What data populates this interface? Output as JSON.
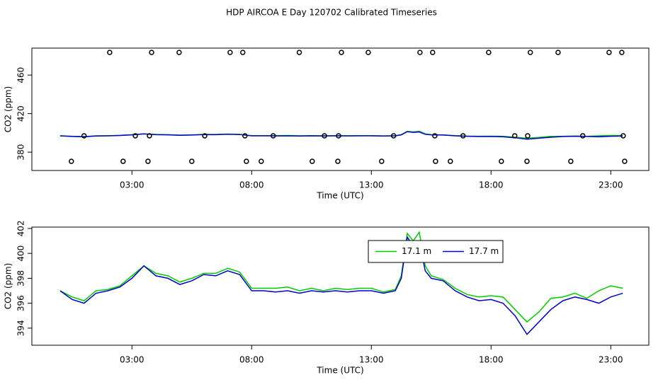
{
  "title": "HDP AIRCOA E  Day 120702  Calibrated Timeseries",
  "chart_data": [
    {
      "type": "line",
      "xlabel": "Time (UTC)",
      "ylabel": "CO2 (ppm)",
      "xlim": [
        -1.18,
        24.59
      ],
      "ylim": [
        361,
        488
      ],
      "xticks": [
        {
          "value": 3,
          "label": "03:00"
        },
        {
          "value": 8,
          "label": "08:00"
        },
        {
          "value": 13,
          "label": "13:00"
        },
        {
          "value": 18,
          "label": "18:00"
        },
        {
          "value": 23,
          "label": "23:00"
        }
      ],
      "yticks": [
        380,
        420,
        460
      ],
      "x": [
        0,
        0.5,
        1,
        1.5,
        2,
        2.5,
        3,
        3.5,
        4,
        4.5,
        5,
        5.5,
        6,
        6.5,
        7,
        7.5,
        8,
        8.5,
        9,
        9.5,
        10,
        10.5,
        11,
        11.5,
        12,
        12.5,
        13,
        13.5,
        14,
        14.25,
        14.5,
        14.75,
        15,
        15.25,
        15.5,
        16,
        16.5,
        17,
        17.5,
        18,
        18.5,
        19,
        19.5,
        20,
        20.5,
        21,
        21.5,
        22,
        22.5,
        23,
        23.5
      ],
      "series": [
        {
          "color": "#00cc00",
          "values": [
            397.0,
            396.5,
            396.2,
            397.0,
            397.1,
            397.4,
            398.2,
            399.0,
            398.4,
            398.2,
            397.7,
            398.0,
            398.4,
            398.4,
            398.8,
            398.5,
            397.2,
            397.2,
            397.2,
            397.3,
            397.0,
            397.2,
            397.0,
            397.2,
            397.1,
            397.2,
            397.2,
            396.9,
            397.1,
            398.2,
            401.6,
            401.0,
            401.7,
            399.0,
            398.2,
            397.9,
            397.2,
            396.7,
            396.5,
            396.6,
            396.5,
            395.5,
            394.5,
            395.3,
            396.4,
            396.5,
            396.8,
            396.4,
            397.0,
            397.4,
            397.2
          ]
        },
        {
          "color": "#0000cc",
          "values": [
            397.0,
            396.3,
            396.0,
            396.8,
            397.0,
            397.3,
            398.0,
            399.0,
            398.2,
            398.0,
            397.5,
            397.8,
            398.3,
            398.2,
            398.6,
            398.3,
            397.0,
            397.0,
            396.9,
            397.0,
            396.8,
            397.0,
            396.9,
            397.0,
            396.9,
            397.0,
            397.0,
            396.8,
            397.0,
            398.0,
            401.3,
            400.6,
            401.0,
            398.6,
            398.0,
            397.8,
            397.0,
            396.5,
            396.2,
            396.3,
            396.0,
            395.0,
            393.5,
            394.5,
            395.5,
            396.2,
            396.5,
            396.3,
            396.0,
            396.5,
            396.8
          ]
        },
        {
          "type": "scatter",
          "color": "#000000",
          "x": [
            2.07,
            3.82,
            4.97,
            7.1,
            7.63,
            9.99,
            11.75,
            12.87,
            15.03,
            15.56,
            17.9,
            19.64,
            20.8,
            22.93,
            23.46,
            1.0,
            3.14,
            3.73,
            6.04,
            7.72,
            8.9,
            11.04,
            11.63,
            13.93,
            15.65,
            16.83,
            18.99,
            19.53,
            21.83,
            23.52,
            0.47,
            2.63,
            3.67,
            5.5,
            7.78,
            8.4,
            10.53,
            11.6,
            13.43,
            15.68,
            16.3,
            18.43,
            19.5,
            21.33,
            23.58
          ],
          "values": [
            483.5,
            483.5,
            483.5,
            483.5,
            483.5,
            483.5,
            483.5,
            483.5,
            483.5,
            483.5,
            483.5,
            483.5,
            483.5,
            483.5,
            483.5,
            397,
            397,
            397,
            397,
            397,
            397,
            397,
            397,
            397,
            397,
            397,
            397,
            397,
            397,
            397,
            370.5,
            370.5,
            370.5,
            370.5,
            370.5,
            370.5,
            370.5,
            370.5,
            370.5,
            370.5,
            370.5,
            370.5,
            370.5,
            370.5,
            370.5
          ]
        }
      ]
    },
    {
      "type": "line",
      "xlabel": "Time (UTC)",
      "ylabel": "CO2 (ppm)",
      "xlim": [
        -1.18,
        24.59
      ],
      "ylim": [
        392.63,
        402.11
      ],
      "xticks": [
        {
          "value": 3,
          "label": "03:00"
        },
        {
          "value": 8,
          "label": "08:00"
        },
        {
          "value": 13,
          "label": "13:00"
        },
        {
          "value": 18,
          "label": "18:00"
        },
        {
          "value": 23,
          "label": "23:00"
        }
      ],
      "yticks": [
        394,
        396,
        398,
        400,
        402
      ],
      "legend": "top-right",
      "x": [
        0,
        0.5,
        1,
        1.5,
        2,
        2.5,
        3,
        3.5,
        4,
        4.5,
        5,
        5.5,
        6,
        6.5,
        7,
        7.5,
        8,
        8.5,
        9,
        9.5,
        10,
        10.5,
        11,
        11.5,
        12,
        12.5,
        13,
        13.5,
        14,
        14.25,
        14.5,
        14.75,
        15,
        15.25,
        15.5,
        16,
        16.5,
        17,
        17.5,
        18,
        18.5,
        19,
        19.5,
        20,
        20.5,
        21,
        21.5,
        22,
        22.5,
        23,
        23.5
      ],
      "series": [
        {
          "name": "17.1 m",
          "color": "#00cc00",
          "values": [
            397.0,
            396.5,
            396.2,
            397.0,
            397.1,
            397.4,
            398.2,
            399.0,
            398.4,
            398.2,
            397.7,
            398.0,
            398.4,
            398.4,
            398.8,
            398.5,
            397.2,
            397.2,
            397.2,
            397.3,
            397.0,
            397.2,
            397.0,
            397.2,
            397.1,
            397.2,
            397.2,
            396.9,
            397.1,
            398.2,
            401.6,
            401.0,
            401.7,
            399.0,
            398.2,
            397.9,
            397.2,
            396.7,
            396.5,
            396.6,
            396.5,
            395.5,
            394.5,
            395.3,
            396.4,
            396.5,
            396.8,
            396.4,
            397.0,
            397.4,
            397.2
          ]
        },
        {
          "name": "17.7 m",
          "color": "#0000cc",
          "values": [
            397.0,
            396.3,
            396.0,
            396.8,
            397.0,
            397.3,
            398.0,
            399.0,
            398.2,
            398.0,
            397.5,
            397.8,
            398.3,
            398.2,
            398.6,
            398.3,
            397.0,
            397.0,
            396.9,
            397.0,
            396.8,
            397.0,
            396.9,
            397.0,
            396.9,
            397.0,
            397.0,
            396.8,
            397.0,
            398.0,
            401.3,
            400.6,
            401.0,
            398.6,
            398.0,
            397.8,
            397.0,
            396.5,
            396.2,
            396.3,
            396.0,
            395.0,
            393.5,
            394.5,
            395.5,
            396.2,
            396.5,
            396.3,
            396.0,
            396.5,
            396.8
          ]
        }
      ]
    }
  ]
}
